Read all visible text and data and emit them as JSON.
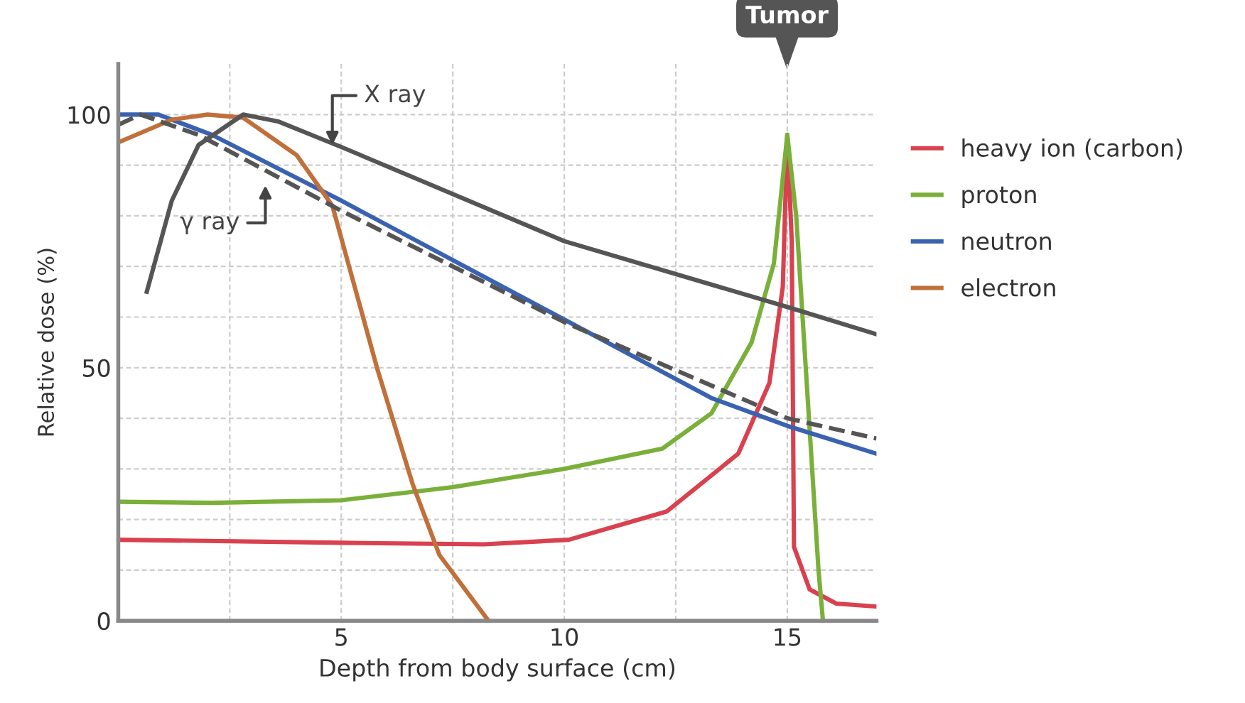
{
  "chart_data": {
    "type": "line",
    "xlabel": "Depth from body surface (cm)",
    "ylabel": "Relative dose (%)",
    "xlim": [
      0,
      17
    ],
    "ylim": [
      0,
      110
    ],
    "xticks": [
      {
        "value": 2.5,
        "label": null
      },
      5,
      {
        "value": 7.5,
        "label": null
      },
      10,
      {
        "value": 12.5,
        "label": null
      },
      15
    ],
    "yticks": [
      0,
      {
        "value": 10,
        "label": null
      },
      {
        "value": 20,
        "label": null
      },
      {
        "value": 30,
        "label": null
      },
      {
        "value": 40,
        "label": null
      },
      50,
      {
        "value": 60,
        "label": null
      },
      {
        "value": 70,
        "label": null
      },
      {
        "value": 80,
        "label": null
      },
      {
        "value": 90,
        "label": null
      },
      100
    ],
    "grid": true,
    "legend": "right",
    "marker": "none",
    "series": [
      {
        "name": "heavy ion (carbon)",
        "color": "#d9414f",
        "x": [
          0,
          5,
          8.2,
          10.1,
          12.3,
          13.9,
          14.6,
          14.9,
          15,
          15.1,
          15.15,
          15.5,
          16.1,
          17
        ],
        "values": [
          16,
          15.4,
          15.1,
          16,
          21.6,
          33,
          47,
          66,
          96,
          75,
          14.6,
          6.2,
          3.4,
          2.8
        ]
      },
      {
        "name": "proton",
        "color": "#7ab03a",
        "x": [
          0,
          2.1,
          5,
          7.5,
          10,
          12.2,
          13.3,
          14.2,
          14.7,
          15,
          15.2,
          15.5,
          15.7,
          15.8
        ],
        "values": [
          23.5,
          23.3,
          23.8,
          26.4,
          30,
          34,
          41,
          55,
          70.6,
          96,
          80,
          38,
          10,
          0
        ]
      },
      {
        "name": "neutron",
        "color": "#3a62b0",
        "x": [
          0,
          0.9,
          2.1,
          5,
          10,
          13.3,
          15,
          17
        ],
        "values": [
          100,
          100,
          96,
          83,
          59.5,
          44,
          38.5,
          33
        ]
      },
      {
        "name": "electron",
        "color": "#c0703a",
        "x": [
          0,
          1.2,
          2,
          2.8,
          4,
          4.8,
          5.3,
          5.8,
          6.6,
          7.2,
          8.3
        ],
        "values": [
          94.5,
          99,
          100,
          99.4,
          92,
          82,
          66,
          50,
          27,
          13,
          0
        ]
      },
      {
        "color": "#555555",
        "x": [
          0.64,
          1.2,
          1.8,
          2.8,
          3.6,
          5,
          10,
          15,
          17
        ],
        "values": [
          65,
          83,
          94,
          100,
          98.6,
          93.6,
          75,
          62,
          56.6
        ]
      },
      {
        "color": "#555555",
        "line_style": "dashed",
        "x": [
          0,
          0.5,
          1.8,
          5,
          10,
          15,
          17
        ],
        "values": [
          98,
          100,
          96,
          81,
          59,
          40,
          36
        ]
      }
    ],
    "annotations": [
      {
        "text": "X ray",
        "x": 4.8,
        "y": 94
      },
      "γ ray",
      "Tumor"
    ]
  }
}
